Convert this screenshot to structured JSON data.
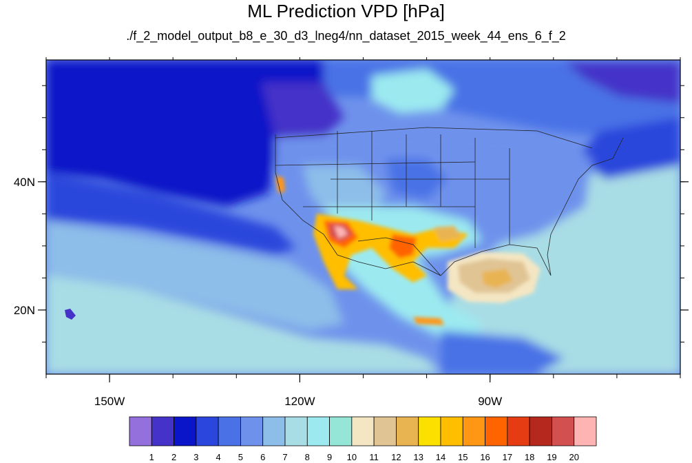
{
  "title": "ML Prediction VPD [hPa]",
  "subtitle": "./f_2_model_output_b8_e_30_d3_lneg4/nn_dataset_2015_week_44_ens_6_f_2",
  "map": {
    "lon_range": [
      -160,
      -60
    ],
    "lat_range": [
      10,
      59
    ],
    "lon_ticks": [
      {
        "value": -150,
        "label": "150W"
      },
      {
        "value": -120,
        "label": "120W"
      },
      {
        "value": -90,
        "label": "90W"
      }
    ],
    "lat_ticks": [
      {
        "value": 20,
        "label": "20N"
      },
      {
        "value": 40,
        "label": "40N"
      }
    ]
  },
  "colorbar": {
    "labels": [
      "1",
      "2",
      "3",
      "4",
      "5",
      "6",
      "7",
      "8",
      "9",
      "10",
      "11",
      "12",
      "13",
      "14",
      "15",
      "16",
      "17",
      "18",
      "19",
      "20"
    ],
    "colors": [
      "#9370db",
      "#4532c8",
      "#0a14c8",
      "#2b46dc",
      "#4a72e6",
      "#6e92ec",
      "#8dbde9",
      "#a9dde5",
      "#9ceaf0",
      "#96e6d8",
      "#f4e6c2",
      "#e0c494",
      "#e8b452",
      "#fce000",
      "#ffbe00",
      "#ff9614",
      "#ff6400",
      "#e63c14",
      "#b4281e",
      "#d25050",
      "#ffb4b4"
    ]
  }
}
